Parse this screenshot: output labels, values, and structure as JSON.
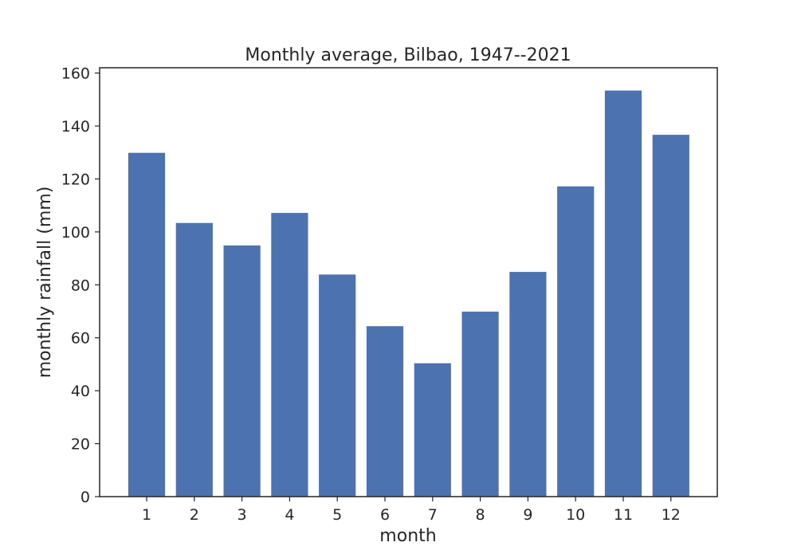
{
  "chart_data": {
    "type": "bar",
    "title": "Monthly average, Bilbao, 1947--2021",
    "xlabel": "month",
    "ylabel": "monthly rainfall (mm)",
    "categories": [
      "1",
      "2",
      "3",
      "4",
      "5",
      "6",
      "7",
      "8",
      "9",
      "10",
      "11",
      "12"
    ],
    "values": [
      130,
      103.5,
      95,
      107.3,
      84,
      64.5,
      50.5,
      70,
      85,
      117.3,
      153.5,
      136.8
    ],
    "ylim": [
      0,
      162
    ],
    "yticks": [
      0,
      20,
      40,
      60,
      80,
      100,
      120,
      140,
      160
    ],
    "grid": false,
    "bar_color": "#4c72b0",
    "axis_color": "#262626"
  }
}
